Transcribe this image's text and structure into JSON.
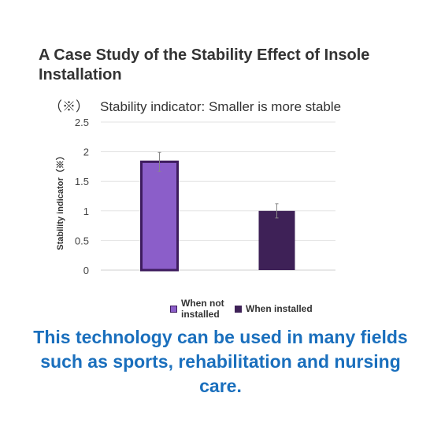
{
  "title": "A Case Study of the Stability Effect of Insole Installation",
  "note": {
    "mark": "（※）",
    "text": "Stability indicator: Smaller is more stable"
  },
  "footer": "This technology can be used in many fields such as sports, rehabilitation and nursing care.",
  "colors": {
    "not_installed": "#8b5ec9",
    "not_installed_border": "#3e1c5e",
    "installed": "#3e2157",
    "footer": "#1a6fbd"
  },
  "chart_data": {
    "type": "bar",
    "categories": [
      "When not installed",
      "When installed"
    ],
    "series": [
      {
        "name": "When not installed",
        "values": [
          1.83,
          null
        ],
        "error": [
          0.16,
          null
        ]
      },
      {
        "name": "When installed",
        "values": [
          null,
          1.0
        ],
        "error": [
          null,
          0.12
        ]
      }
    ],
    "title": "",
    "xlabel": "",
    "ylabel": "Stability indicator（※）",
    "ylim": [
      0,
      2.5
    ],
    "yticks": [
      "0",
      "0.5",
      "1",
      "1.5",
      "2",
      "2.5"
    ],
    "grid": true,
    "legend": "bottom"
  }
}
